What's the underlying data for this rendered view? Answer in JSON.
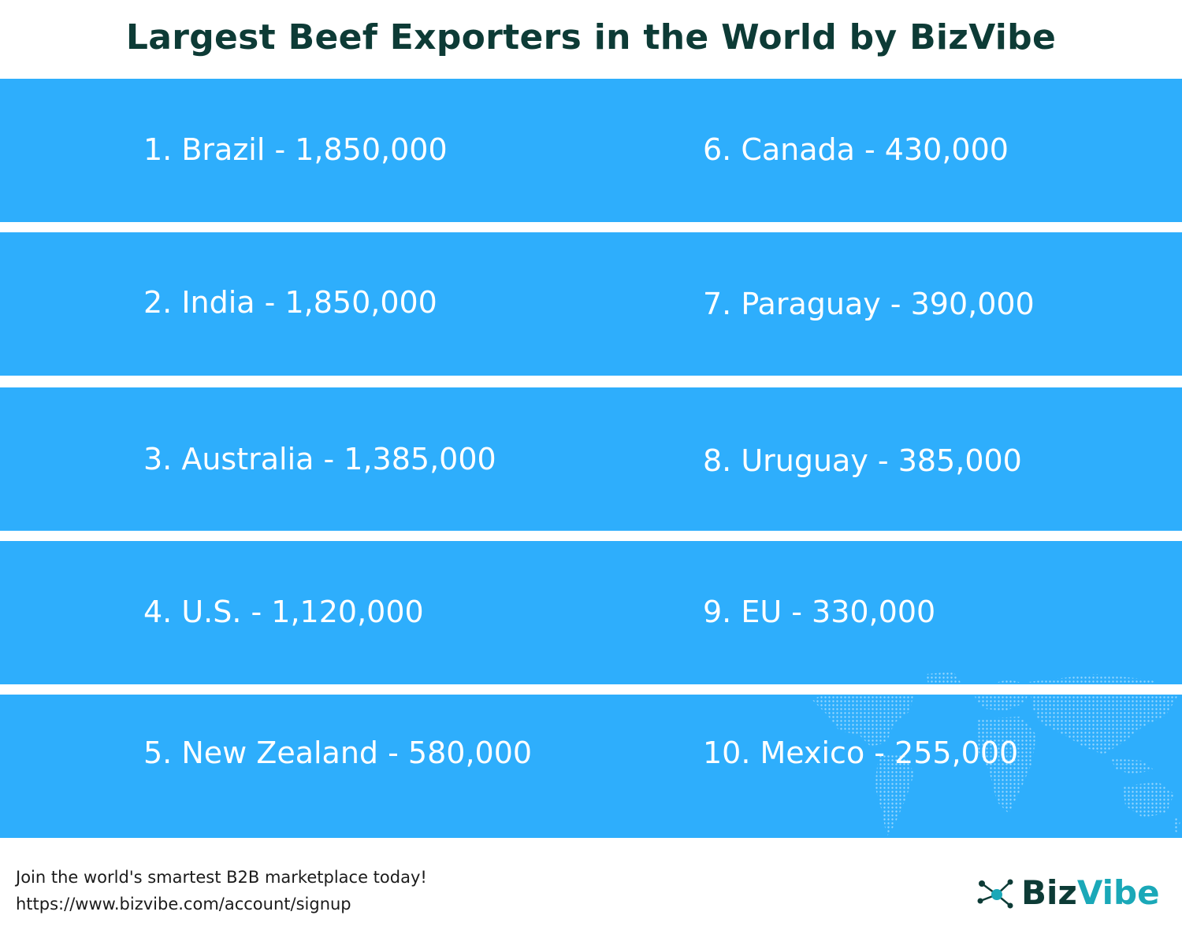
{
  "title": "Largest Beef Exporters in the World by BizVibe",
  "rankings": [
    {
      "text": "1. Brazil - 1,850,000"
    },
    {
      "text": "2. India - 1,850,000"
    },
    {
      "text": "3. Australia - 1,385,000"
    },
    {
      "text": "4. U.S. - 1,120,000"
    },
    {
      "text": "5. New Zealand - 580,000"
    },
    {
      "text": "6. Canada - 430,000"
    },
    {
      "text": "7. Paraguay - 390,000"
    },
    {
      "text": "8. Uruguay - 385,000"
    },
    {
      "text": "9. EU - 330,000"
    },
    {
      "text": "10. Mexico - 255,000"
    }
  ],
  "footer": {
    "tagline": "Join the world's smartest B2B marketplace today!",
    "url": "https://www.bizvibe.com/account/signup"
  },
  "logo": {
    "part1": "Biz",
    "part2": "Vibe",
    "icon": "network-nodes-icon"
  },
  "colors": {
    "band": "#2eaefc",
    "title": "#0d3b36",
    "accent": "#1aa8b8"
  }
}
